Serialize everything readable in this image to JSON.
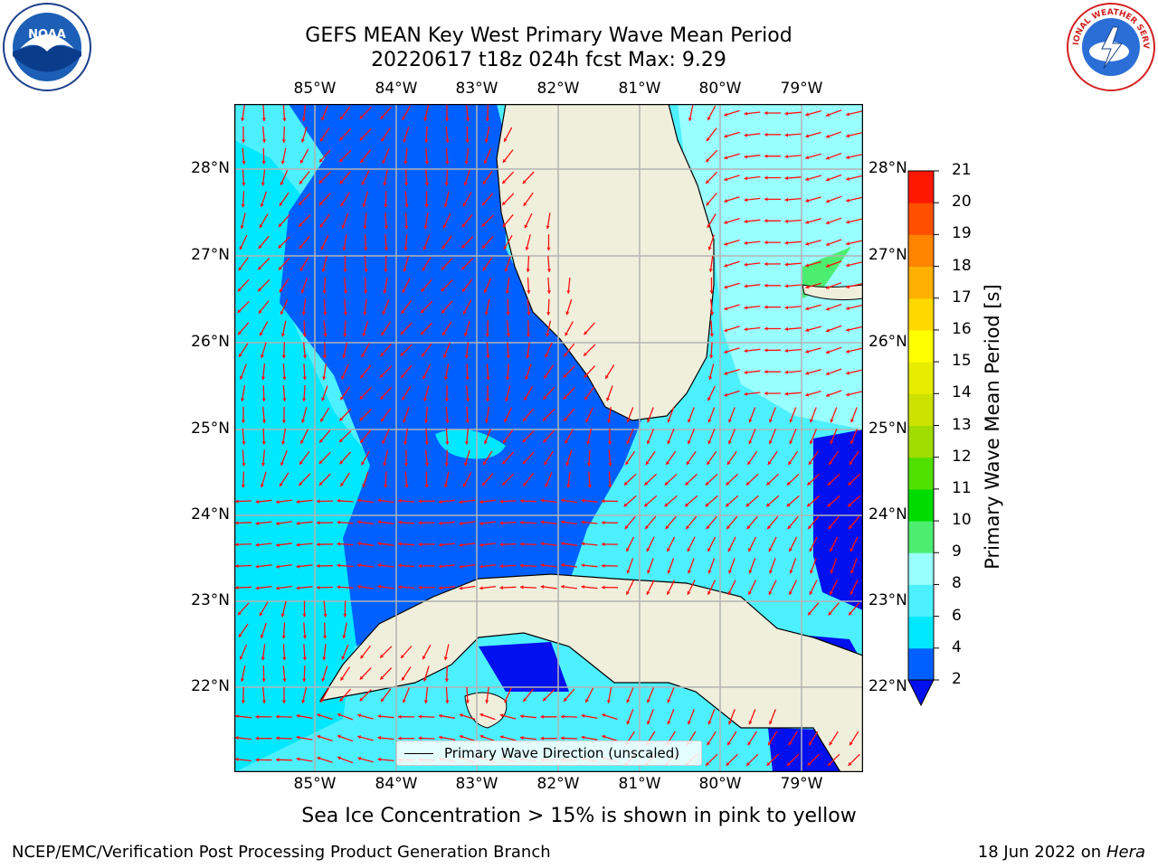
{
  "title": {
    "line1": "GEFS MEAN Key West Primary Wave Mean Period",
    "line2": "20220617 t18z 024h fcst   Max: 9.29"
  },
  "logos": {
    "left": "NOAA",
    "right": "NATIONAL WEATHER SERVICE"
  },
  "axes": {
    "lon_labels": [
      "85°W",
      "84°W",
      "83°W",
      "82°W",
      "81°W",
      "80°W",
      "79°W"
    ],
    "lat_labels": [
      "28°N",
      "27°N",
      "26°N",
      "25°N",
      "24°N",
      "23°N",
      "22°N"
    ]
  },
  "legend": {
    "label": "Primary Wave Direction (unscaled)"
  },
  "colorbar": {
    "title": "Primary Wave Mean Period [s]",
    "ticks": [
      "2",
      "4",
      "6",
      "8",
      "9",
      "10",
      "11",
      "12",
      "13",
      "14",
      "15",
      "16",
      "17",
      "18",
      "19",
      "20",
      "21"
    ],
    "colors": [
      "#0060ff",
      "#00e8ff",
      "#4df0ff",
      "#99ffff",
      "#4cee70",
      "#00dc00",
      "#50e000",
      "#a0dc00",
      "#cce200",
      "#e8ec00",
      "#ffff00",
      "#ffd800",
      "#ffb000",
      "#ff8400",
      "#ff5000",
      "#ff1800"
    ],
    "under_color": "#0010ee"
  },
  "notes": {
    "sea_ice": "Sea Ice Concentration > 15% is shown in pink to yellow",
    "footer_left": "NCEP/EMC/Verification Post Processing Product Generation Branch",
    "footer_date": "18 Jun 2022 on",
    "footer_host": "Hera"
  }
}
